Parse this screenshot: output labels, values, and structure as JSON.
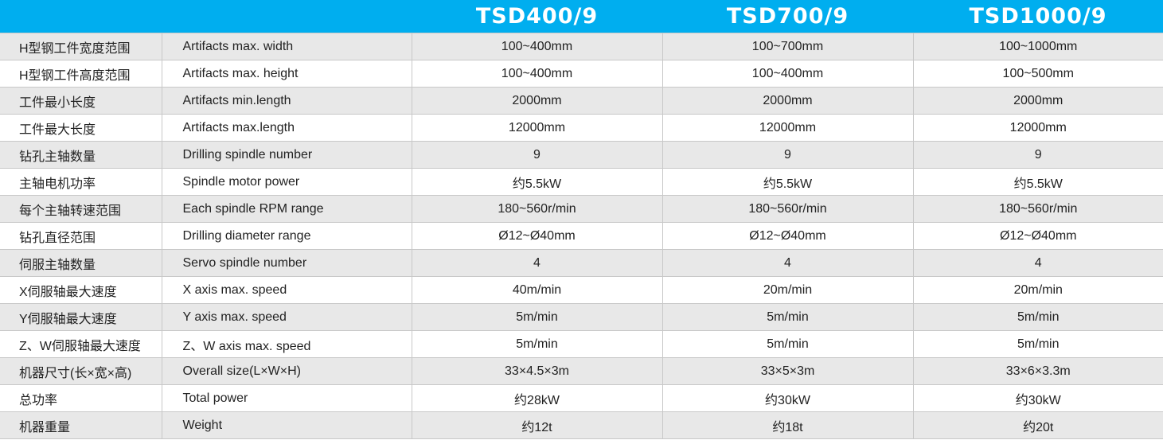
{
  "header": {
    "models": [
      "TSD400/9",
      "TSD700/9",
      "TSD1000/9"
    ]
  },
  "rows": [
    {
      "cn": "H型钢工件宽度范围",
      "en": "Artifacts max. width",
      "values": [
        "100~400mm",
        "100~700mm",
        "100~1000mm"
      ]
    },
    {
      "cn": "H型钢工件高度范围",
      "en": "Artifacts max. height",
      "values": [
        "100~400mm",
        "100~400mm",
        "100~500mm"
      ]
    },
    {
      "cn": "工件最小长度",
      "en": "Artifacts min.length",
      "values": [
        "2000mm",
        "2000mm",
        "2000mm"
      ]
    },
    {
      "cn": "工件最大长度",
      "en": "Artifacts max.length",
      "values": [
        "12000mm",
        "12000mm",
        "12000mm"
      ]
    },
    {
      "cn": "钻孔主轴数量",
      "en": "Drilling spindle number",
      "values": [
        "9",
        "9",
        "9"
      ]
    },
    {
      "cn": "主轴电机功率",
      "en": "Spindle motor power",
      "values": [
        "约5.5kW",
        "约5.5kW",
        "约5.5kW"
      ]
    },
    {
      "cn": "每个主轴转速范围",
      "en": "Each spindle RPM range",
      "values": [
        "180~560r/min",
        "180~560r/min",
        "180~560r/min"
      ]
    },
    {
      "cn": "钻孔直径范围",
      "en": "Drilling diameter range",
      "values": [
        "Ø12~Ø40mm",
        "Ø12~Ø40mm",
        "Ø12~Ø40mm"
      ]
    },
    {
      "cn": "伺服主轴数量",
      "en": "Servo spindle number",
      "values": [
        "4",
        "4",
        "4"
      ]
    },
    {
      "cn": "X伺服轴最大速度",
      "en": "X axis max. speed",
      "values": [
        "40m/min",
        "20m/min",
        "20m/min"
      ]
    },
    {
      "cn": "Y伺服轴最大速度",
      "en": "Y axis max. speed",
      "values": [
        "5m/min",
        "5m/min",
        "5m/min"
      ]
    },
    {
      "cn": "Z、W伺服轴最大速度",
      "en": "Z、W axis max. speed",
      "values": [
        "5m/min",
        "5m/min",
        "5m/min"
      ]
    },
    {
      "cn": "机器尺寸(长×宽×高)",
      "en": "Overall size(L×W×H)",
      "values": [
        "33×4.5×3m",
        "33×5×3m",
        "33×6×3.3m"
      ]
    },
    {
      "cn": "总功率",
      "en": "Total power",
      "values": [
        "约28kW",
        "约30kW",
        "约30kW"
      ]
    },
    {
      "cn": "机器重量",
      "en": "Weight",
      "values": [
        "约12t",
        "约18t",
        "约20t"
      ]
    }
  ],
  "colors": {
    "header_bg": "#00aeef",
    "row_alt": "#e8e8e8"
  }
}
